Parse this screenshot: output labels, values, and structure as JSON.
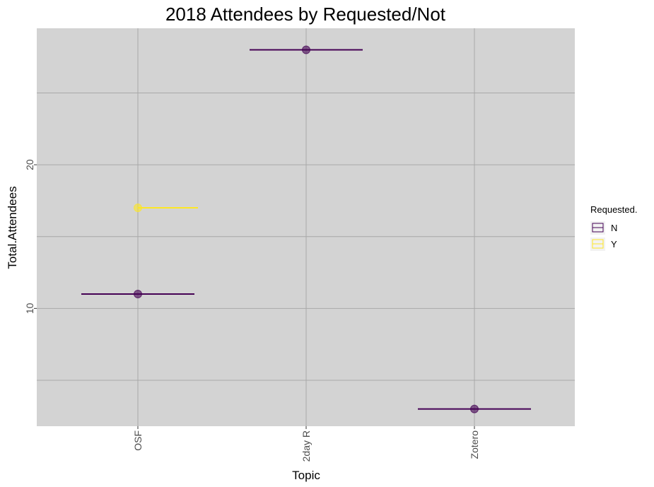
{
  "chart_data": {
    "type": "scatter",
    "title": "2018 Attendees by Requested/Not",
    "xlabel": "Topic",
    "ylabel": "Total.Attendees",
    "categories": [
      "OSF",
      "2day R",
      "Zotero"
    ],
    "yticks": [
      10,
      20
    ],
    "ylim": [
      1.8,
      29.5
    ],
    "grid": true,
    "panel_background": "#d3d3d3",
    "legend": {
      "title": "Requested.",
      "position": "right",
      "entries": [
        {
          "key": "N",
          "label": "N",
          "color": "#440154"
        },
        {
          "key": "Y",
          "label": "Y",
          "color": "#fde725"
        }
      ]
    },
    "series": [
      {
        "name": "N",
        "color": "#440154",
        "points": [
          {
            "x": "OSF",
            "y": 11
          },
          {
            "x": "2day R",
            "y": 28
          },
          {
            "x": "Zotero",
            "y": 3
          }
        ]
      },
      {
        "name": "Y",
        "color": "#fde725",
        "points": [
          {
            "x": "OSF",
            "y": 17
          }
        ]
      }
    ]
  }
}
